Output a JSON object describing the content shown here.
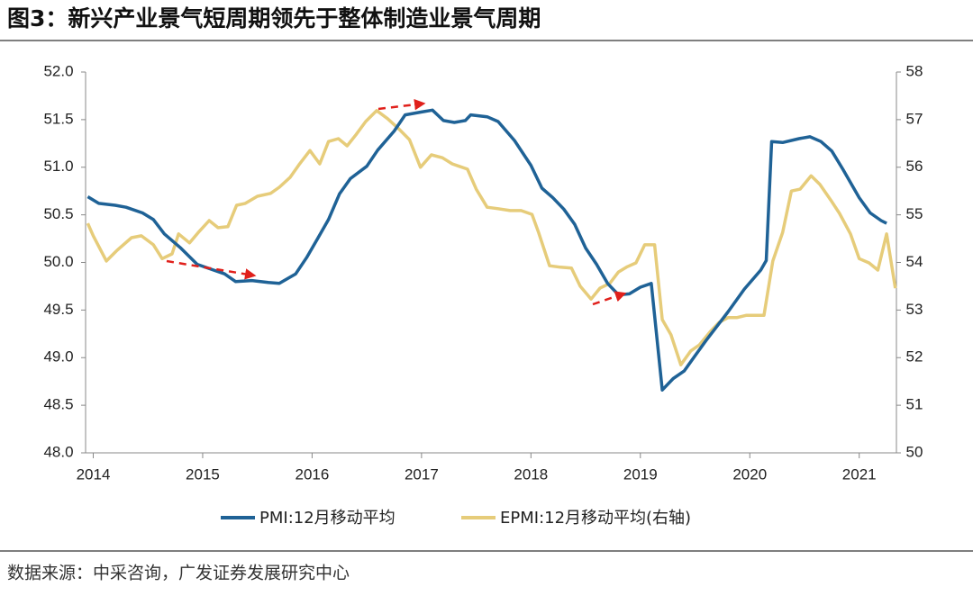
{
  "chart_data": {
    "type": "line",
    "title": "图3：新兴产业景气短周期领先于整体制造业景气周期",
    "source": "数据来源：中采咨询，广发证券发展研究中心",
    "xlim": [
      2013.93,
      2021.34
    ],
    "xticks": [
      2014,
      2015,
      2016,
      2017,
      2018,
      2019,
      2020,
      2021
    ],
    "ylim": [
      48,
      52
    ],
    "yticks": [
      {
        "value": 48,
        "label": "48.0"
      },
      {
        "value": 48.5,
        "label": "48.5"
      },
      {
        "value": 49,
        "label": "49.0"
      },
      {
        "value": 49.5,
        "label": "49.5"
      },
      {
        "value": 50,
        "label": "50.0"
      },
      {
        "value": 50.5,
        "label": "50.5"
      },
      {
        "value": 51,
        "label": "51.0"
      },
      {
        "value": 51.5,
        "label": "51.5"
      },
      {
        "value": 52,
        "label": "52.0"
      }
    ],
    "y2lim": [
      50,
      58
    ],
    "y2ticks": [
      50,
      51,
      52,
      53,
      54,
      55,
      56,
      57,
      58
    ],
    "series": [
      {
        "name": "PMI:12月移动平均",
        "color": "#1f6296",
        "x": [
          2013.95,
          2014.05,
          2014.2,
          2014.3,
          2014.45,
          2014.55,
          2014.65,
          2014.8,
          2014.95,
          2015.1,
          2015.2,
          2015.3,
          2015.45,
          2015.6,
          2015.7,
          2015.85,
          2015.95,
          2016.05,
          2016.15,
          2016.25,
          2016.35,
          2016.5,
          2016.6,
          2016.75,
          2016.85,
          2017.0,
          2017.1,
          2017.2,
          2017.3,
          2017.4,
          2017.45,
          2017.6,
          2017.7,
          2017.85,
          2018.0,
          2018.1,
          2018.2,
          2018.3,
          2018.4,
          2018.5,
          2018.6,
          2018.7,
          2018.8,
          2018.9,
          2019.0,
          2019.1,
          2019.2,
          2019.3,
          2019.4,
          2019.5,
          2019.6,
          2019.7,
          2019.8,
          2019.95,
          2020.1,
          2020.15,
          2020.2,
          2020.3,
          2020.45,
          2020.55,
          2020.65,
          2020.75,
          2020.85,
          2021.0,
          2021.1,
          2021.2,
          2021.25
        ],
        "values": [
          50.69,
          50.62,
          50.6,
          50.58,
          50.52,
          50.45,
          50.3,
          50.15,
          49.98,
          49.92,
          49.88,
          49.8,
          49.81,
          49.79,
          49.78,
          49.88,
          50.05,
          50.25,
          50.45,
          50.72,
          50.88,
          51.01,
          51.18,
          51.38,
          51.55,
          51.58,
          51.6,
          51.49,
          51.47,
          51.49,
          51.55,
          51.53,
          51.48,
          51.28,
          51.02,
          50.78,
          50.68,
          50.56,
          50.4,
          50.15,
          49.98,
          49.78,
          49.66,
          49.67,
          49.74,
          49.78,
          48.66,
          48.78,
          48.86,
          49.02,
          49.18,
          49.33,
          49.48,
          49.72,
          49.92,
          50.02,
          51.27,
          51.26,
          51.3,
          51.32,
          51.27,
          51.17,
          50.98,
          50.68,
          50.52,
          50.44,
          50.41
        ]
      },
      {
        "name": "EPMI:12月移动平均(右轴)",
        "color": "#e6cc7a",
        "axis": "y2",
        "x": [
          2013.95,
          2014.0,
          2014.12,
          2014.22,
          2014.35,
          2014.44,
          2014.55,
          2014.63,
          2014.72,
          2014.78,
          2014.88,
          2014.96,
          2015.06,
          2015.14,
          2015.23,
          2015.31,
          2015.39,
          2015.5,
          2015.62,
          2015.7,
          2015.8,
          2015.88,
          2015.98,
          2016.07,
          2016.15,
          2016.24,
          2016.32,
          2016.4,
          2016.49,
          2016.59,
          2016.69,
          2016.79,
          2016.89,
          2016.99,
          2017.09,
          2017.19,
          2017.28,
          2017.42,
          2017.5,
          2017.6,
          2017.7,
          2017.81,
          2017.91,
          2018.01,
          2018.07,
          2018.17,
          2018.27,
          2018.37,
          2018.45,
          2018.55,
          2018.63,
          2018.72,
          2018.8,
          2018.88,
          2018.96,
          2019.04,
          2019.13,
          2019.2,
          2019.28,
          2019.37,
          2019.46,
          2019.54,
          2019.64,
          2019.72,
          2019.8,
          2019.88,
          2019.97,
          2020.05,
          2020.13,
          2020.21,
          2020.3,
          2020.38,
          2020.46,
          2020.56,
          2020.64,
          2020.74,
          2020.82,
          2020.92,
          2021.0,
          2021.09,
          2021.17,
          2021.25,
          2021.33
        ],
        "values": [
          54.82,
          54.56,
          54.03,
          54.26,
          54.52,
          54.56,
          54.37,
          54.08,
          54.18,
          54.6,
          54.41,
          54.63,
          54.88,
          54.73,
          54.75,
          55.2,
          55.24,
          55.39,
          55.45,
          55.58,
          55.79,
          56.05,
          56.35,
          56.07,
          56.54,
          56.6,
          56.45,
          56.68,
          56.96,
          57.19,
          57.02,
          56.81,
          56.58,
          56.0,
          56.26,
          56.2,
          56.07,
          55.96,
          55.54,
          55.16,
          55.13,
          55.09,
          55.09,
          55.01,
          54.63,
          53.93,
          53.9,
          53.88,
          53.5,
          53.23,
          53.46,
          53.56,
          53.8,
          53.91,
          53.99,
          54.37,
          54.37,
          52.8,
          52.48,
          51.85,
          52.14,
          52.27,
          52.55,
          52.74,
          52.84,
          52.84,
          52.89,
          52.89,
          52.89,
          54.03,
          54.63,
          55.5,
          55.54,
          55.82,
          55.64,
          55.31,
          55.03,
          54.6,
          54.08,
          53.99,
          53.84,
          54.6,
          53.46
        ]
      }
    ]
  }
}
